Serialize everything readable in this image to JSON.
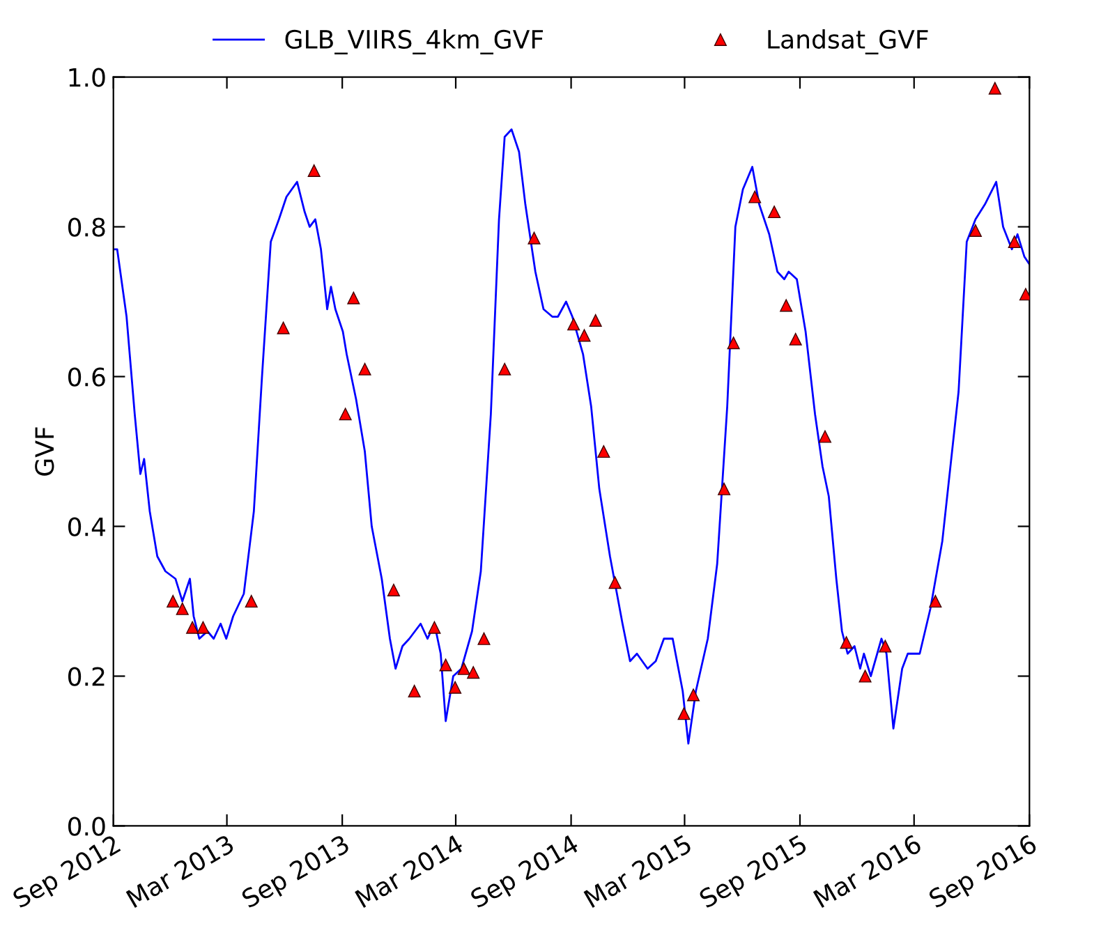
{
  "chart_data": {
    "type": "line",
    "ylabel": "GVF",
    "legend": "top",
    "grid": false,
    "xlim": [
      "2012-09-01",
      "2016-09-01"
    ],
    "xticks": [
      {
        "value": "2012-09-01",
        "label": "Sep 2012"
      },
      {
        "value": "2013-03-01",
        "label": "Mar 2013"
      },
      {
        "value": "2013-09-01",
        "label": "Sep 2013"
      },
      {
        "value": "2014-03-01",
        "label": "Mar 2014"
      },
      {
        "value": "2014-09-01",
        "label": "Sep 2014"
      },
      {
        "value": "2015-03-01",
        "label": "Mar 2015"
      },
      {
        "value": "2015-09-01",
        "label": "Sep 2015"
      },
      {
        "value": "2016-03-01",
        "label": "Mar 2016"
      },
      {
        "value": "2016-09-01",
        "label": "Sep 2016"
      }
    ],
    "ylim": [
      0,
      1
    ],
    "yticks": [
      {
        "value": 0,
        "label": "0.0"
      },
      {
        "value": 0.2,
        "label": "0.2"
      },
      {
        "value": 0.4,
        "label": "0.4"
      },
      {
        "value": 0.6,
        "label": "0.6"
      },
      {
        "value": 0.8,
        "label": "0.8"
      },
      {
        "value": 1,
        "label": "1.0"
      }
    ],
    "series": [
      {
        "name": "GLB_VIIRS_4km_GVF",
        "color": "#0000ff",
        "marker": "none",
        "line_style": "solid",
        "x": [
          "2012-09-01",
          "2012-09-07",
          "2012-09-22",
          "2012-10-05",
          "2012-10-14",
          "2012-10-20",
          "2012-10-29",
          "2012-11-10",
          "2012-11-23",
          "2012-12-09",
          "2012-12-20",
          "2013-01-01",
          "2013-01-07",
          "2013-01-16",
          "2013-01-29",
          "2013-02-08",
          "2013-02-19",
          "2013-02-28",
          "2013-03-11",
          "2013-03-28",
          "2013-04-13",
          "2013-04-26",
          "2013-05-10",
          "2013-05-23",
          "2013-06-04",
          "2013-06-21",
          "2013-07-03",
          "2013-07-11",
          "2013-07-20",
          "2013-07-29",
          "2013-08-08",
          "2013-08-14",
          "2013-08-21",
          "2013-09-02",
          "2013-09-08",
          "2013-09-23",
          "2013-10-07",
          "2013-10-18",
          "2013-11-03",
          "2013-11-16",
          "2013-11-25",
          "2013-12-06",
          "2013-12-17",
          "2014-01-04",
          "2014-01-15",
          "2014-01-26",
          "2014-02-05",
          "2014-02-13",
          "2014-02-25",
          "2014-03-10",
          "2014-03-27",
          "2014-04-10",
          "2014-04-26",
          "2014-05-09",
          "2014-05-18",
          "2014-05-29",
          "2014-06-10",
          "2014-06-20",
          "2014-07-06",
          "2014-07-19",
          "2014-08-02",
          "2014-08-11",
          "2014-08-24",
          "2014-09-03",
          "2014-09-20",
          "2014-10-03",
          "2014-10-16",
          "2014-11-02",
          "2014-11-22",
          "2014-12-04",
          "2014-12-15",
          "2015-01-01",
          "2015-01-14",
          "2015-01-27",
          "2015-02-10",
          "2015-02-26",
          "2015-03-07",
          "2015-03-19",
          "2015-04-07",
          "2015-04-22",
          "2015-05-08",
          "2015-05-21",
          "2015-06-02",
          "2015-06-17",
          "2015-06-28",
          "2015-07-14",
          "2015-07-27",
          "2015-08-07",
          "2015-08-14",
          "2015-08-27",
          "2015-09-10",
          "2015-09-25",
          "2015-10-07",
          "2015-10-17",
          "2015-10-29",
          "2015-11-07",
          "2015-11-16",
          "2015-11-27",
          "2015-12-06",
          "2015-12-12",
          "2015-12-23",
          "2016-01-09",
          "2016-01-17",
          "2016-01-28",
          "2016-02-11",
          "2016-02-20",
          "2016-03-10",
          "2016-03-27",
          "2016-04-15",
          "2016-05-11",
          "2016-05-24",
          "2016-06-07",
          "2016-06-22",
          "2016-07-10",
          "2016-07-21",
          "2016-08-04",
          "2016-08-13",
          "2016-08-24",
          "2016-09-01"
        ],
        "values": [
          0.77,
          0.77,
          0.68,
          0.55,
          0.47,
          0.49,
          0.42,
          0.36,
          0.34,
          0.33,
          0.3,
          0.33,
          0.28,
          0.25,
          0.26,
          0.25,
          0.27,
          0.25,
          0.28,
          0.31,
          0.42,
          0.6,
          0.78,
          0.81,
          0.84,
          0.86,
          0.82,
          0.8,
          0.81,
          0.77,
          0.69,
          0.72,
          0.69,
          0.66,
          0.63,
          0.57,
          0.5,
          0.4,
          0.33,
          0.25,
          0.21,
          0.24,
          0.25,
          0.27,
          0.25,
          0.27,
          0.23,
          0.14,
          0.2,
          0.21,
          0.26,
          0.34,
          0.55,
          0.81,
          0.92,
          0.93,
          0.9,
          0.83,
          0.74,
          0.69,
          0.68,
          0.68,
          0.7,
          0.68,
          0.63,
          0.56,
          0.45,
          0.36,
          0.27,
          0.22,
          0.23,
          0.21,
          0.22,
          0.25,
          0.25,
          0.18,
          0.11,
          0.18,
          0.25,
          0.35,
          0.56,
          0.8,
          0.85,
          0.88,
          0.83,
          0.79,
          0.74,
          0.73,
          0.74,
          0.73,
          0.66,
          0.55,
          0.48,
          0.44,
          0.33,
          0.26,
          0.23,
          0.24,
          0.21,
          0.23,
          0.2,
          0.25,
          0.23,
          0.13,
          0.21,
          0.23,
          0.23,
          0.29,
          0.38,
          0.58,
          0.78,
          0.81,
          0.83,
          0.86,
          0.8,
          0.77,
          0.79,
          0.76,
          0.75
        ]
      },
      {
        "name": "Landsat_GVF",
        "type": "scatter",
        "color": "#ff0000",
        "marker": "triangle",
        "x": [
          "2012-12-05",
          "2012-12-20",
          "2013-01-05",
          "2013-01-22",
          "2013-04-09",
          "2013-05-30",
          "2013-07-18",
          "2013-09-06",
          "2013-09-19",
          "2013-10-07",
          "2013-11-22",
          "2013-12-25",
          "2014-01-26",
          "2014-02-13",
          "2014-02-28",
          "2014-03-14",
          "2014-03-29",
          "2014-04-15",
          "2014-05-18",
          "2014-07-04",
          "2014-09-05",
          "2014-09-22",
          "2014-10-10",
          "2014-10-23",
          "2014-11-10",
          "2015-02-28",
          "2015-03-15",
          "2015-05-03",
          "2015-05-18",
          "2015-06-21",
          "2015-07-22",
          "2015-08-10",
          "2015-08-25",
          "2015-10-11",
          "2015-11-14",
          "2015-12-14",
          "2016-01-15",
          "2016-04-04",
          "2016-06-07",
          "2016-07-08",
          "2016-08-08",
          "2016-08-26"
        ],
        "values": [
          0.3,
          0.29,
          0.265,
          0.265,
          0.3,
          0.665,
          0.875,
          0.55,
          0.705,
          0.61,
          0.315,
          0.18,
          0.265,
          0.215,
          0.185,
          0.21,
          0.205,
          0.25,
          0.61,
          0.785,
          0.67,
          0.655,
          0.675,
          0.5,
          0.325,
          0.15,
          0.175,
          0.45,
          0.645,
          0.84,
          0.82,
          0.695,
          0.65,
          0.52,
          0.245,
          0.2,
          0.24,
          0.3,
          0.795,
          0.985,
          0.78,
          0.71
        ]
      }
    ]
  }
}
